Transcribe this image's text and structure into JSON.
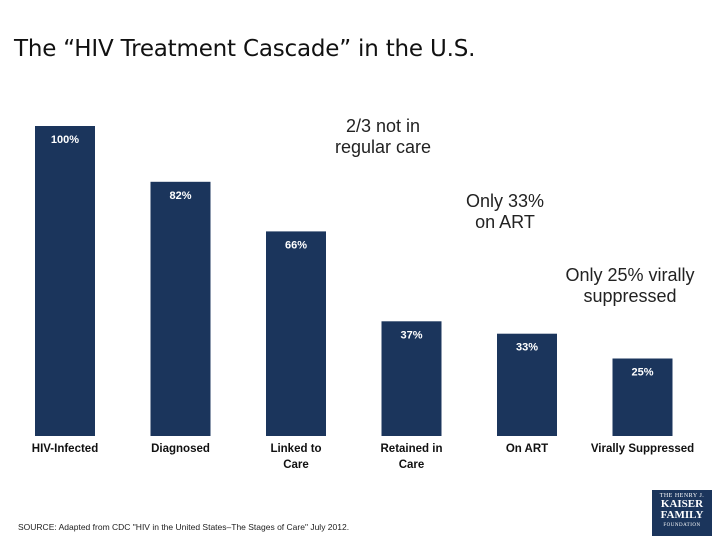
{
  "title": "The “HIV Treatment Cascade” in the U.S.",
  "chart_data": {
    "type": "bar",
    "categories": [
      [
        "HIV-Infected"
      ],
      [
        "Diagnosed"
      ],
      [
        "Linked to",
        "Care"
      ],
      [
        "Retained in",
        "Care"
      ],
      [
        "On ART"
      ],
      [
        "Virally Suppressed"
      ]
    ],
    "values": [
      100,
      82,
      66,
      37,
      33,
      25
    ],
    "data_labels": [
      "100%",
      "82%",
      "66%",
      "37%",
      "33%",
      "25%"
    ],
    "ylim": [
      0,
      100
    ],
    "bar_color": "#1b355c",
    "annotations": [
      {
        "lines": [
          "2/3 not in",
          "regular care"
        ]
      },
      {
        "lines": [
          "Only 33%",
          "on ART"
        ]
      },
      {
        "lines": [
          "Only 25% virally",
          "suppressed"
        ]
      }
    ]
  },
  "source": "SOURCE: Adapted from CDC \"HIV in the United States–The Stages of Care\" July 2012.",
  "logo": {
    "line1": "THE HENRY J.",
    "line2": "KAISER",
    "line3": "FAMILY",
    "line4": "FOUNDATION"
  }
}
